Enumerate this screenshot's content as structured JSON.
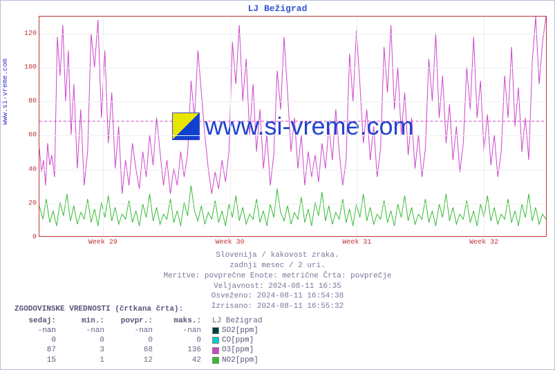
{
  "chart": {
    "type": "line",
    "title": "LJ Bežigrad",
    "y_axis_label_link": "www.si-vreme.com",
    "background_color": "#ffffff",
    "border_color": "#bb3333",
    "grid_color": "#eeeeee",
    "ylim": [
      0,
      130
    ],
    "yticks": [
      0,
      20,
      40,
      60,
      80,
      100,
      120
    ],
    "xticks": [
      "Week 29",
      "Week 30",
      "Week 31",
      "Week 32"
    ],
    "tick_color": "#bb3333",
    "tick_fontsize": 10,
    "title_color": "#3355cc",
    "title_fontsize": 13,
    "reference_line": {
      "y": 68,
      "color": "#cc44cc",
      "dash": true
    },
    "series": [
      {
        "name": "O3",
        "color": "#cc44cc",
        "line_width": 1,
        "points": [
          [
            0,
            52
          ],
          [
            3,
            38
          ],
          [
            6,
            45
          ],
          [
            9,
            30
          ],
          [
            12,
            55
          ],
          [
            15,
            42
          ],
          [
            18,
            48
          ],
          [
            22,
            35
          ],
          [
            26,
            118
          ],
          [
            30,
            95
          ],
          [
            34,
            125
          ],
          [
            38,
            80
          ],
          [
            42,
            110
          ],
          [
            46,
            60
          ],
          [
            50,
            90
          ],
          [
            55,
            40
          ],
          [
            60,
            75
          ],
          [
            65,
            30
          ],
          [
            70,
            50
          ],
          [
            75,
            120
          ],
          [
            80,
            100
          ],
          [
            85,
            128
          ],
          [
            90,
            70
          ],
          [
            95,
            110
          ],
          [
            100,
            55
          ],
          [
            105,
            85
          ],
          [
            110,
            40
          ],
          [
            115,
            65
          ],
          [
            120,
            25
          ],
          [
            125,
            45
          ],
          [
            130,
            30
          ],
          [
            135,
            55
          ],
          [
            140,
            40
          ],
          [
            145,
            28
          ],
          [
            150,
            50
          ],
          [
            155,
            35
          ],
          [
            160,
            60
          ],
          [
            165,
            42
          ],
          [
            170,
            70
          ],
          [
            175,
            50
          ],
          [
            180,
            30
          ],
          [
            185,
            45
          ],
          [
            190,
            25
          ],
          [
            195,
            40
          ],
          [
            200,
            30
          ],
          [
            205,
            50
          ],
          [
            210,
            35
          ],
          [
            215,
            48
          ],
          [
            220,
            92
          ],
          [
            225,
            70
          ],
          [
            230,
            110
          ],
          [
            235,
            85
          ],
          [
            240,
            60
          ],
          [
            245,
            40
          ],
          [
            250,
            25
          ],
          [
            255,
            38
          ],
          [
            260,
            28
          ],
          [
            265,
            45
          ],
          [
            270,
            32
          ],
          [
            275,
            50
          ],
          [
            280,
            115
          ],
          [
            285,
            90
          ],
          [
            290,
            125
          ],
          [
            295,
            80
          ],
          [
            300,
            105
          ],
          [
            305,
            60
          ],
          [
            310,
            90
          ],
          [
            315,
            50
          ],
          [
            320,
            75
          ],
          [
            325,
            40
          ],
          [
            330,
            60
          ],
          [
            335,
            30
          ],
          [
            340,
            48
          ],
          [
            345,
            98
          ],
          [
            350,
            75
          ],
          [
            355,
            118
          ],
          [
            360,
            85
          ],
          [
            365,
            50
          ],
          [
            370,
            70
          ],
          [
            375,
            40
          ],
          [
            380,
            60
          ],
          [
            385,
            30
          ],
          [
            390,
            50
          ],
          [
            395,
            35
          ],
          [
            400,
            48
          ],
          [
            405,
            32
          ],
          [
            410,
            55
          ],
          [
            415,
            40
          ],
          [
            420,
            65
          ],
          [
            425,
            45
          ],
          [
            430,
            75
          ],
          [
            435,
            50
          ],
          [
            440,
            30
          ],
          [
            445,
            45
          ],
          [
            450,
            108
          ],
          [
            455,
            80
          ],
          [
            460,
            122
          ],
          [
            465,
            90
          ],
          [
            470,
            55
          ],
          [
            475,
            75
          ],
          [
            480,
            45
          ],
          [
            485,
            65
          ],
          [
            490,
            35
          ],
          [
            495,
            52
          ],
          [
            500,
            112
          ],
          [
            505,
            85
          ],
          [
            510,
            125
          ],
          [
            515,
            75
          ],
          [
            520,
            100
          ],
          [
            525,
            60
          ],
          [
            530,
            85
          ],
          [
            535,
            48
          ],
          [
            540,
            70
          ],
          [
            545,
            40
          ],
          [
            550,
            60
          ],
          [
            555,
            35
          ],
          [
            560,
            52
          ],
          [
            565,
            105
          ],
          [
            570,
            80
          ],
          [
            575,
            120
          ],
          [
            580,
            70
          ],
          [
            585,
            95
          ],
          [
            590,
            55
          ],
          [
            595,
            78
          ],
          [
            600,
            45
          ],
          [
            605,
            65
          ],
          [
            610,
            38
          ],
          [
            615,
            55
          ],
          [
            620,
            100
          ],
          [
            625,
            75
          ],
          [
            630,
            118
          ],
          [
            635,
            70
          ],
          [
            640,
            92
          ],
          [
            645,
            50
          ],
          [
            650,
            72
          ],
          [
            655,
            42
          ],
          [
            660,
            60
          ],
          [
            665,
            35
          ],
          [
            670,
            50
          ],
          [
            675,
            95
          ],
          [
            680,
            70
          ],
          [
            685,
            112
          ],
          [
            690,
            65
          ],
          [
            695,
            88
          ],
          [
            700,
            50
          ],
          [
            705,
            70
          ],
          [
            710,
            45
          ],
          [
            715,
            103
          ],
          [
            720,
            130
          ],
          [
            725,
            90
          ],
          [
            730,
            115
          ],
          [
            735,
            130
          ]
        ]
      },
      {
        "name": "NO2",
        "color": "#33bb33",
        "line_width": 1,
        "points": [
          [
            0,
            18
          ],
          [
            5,
            10
          ],
          [
            10,
            22
          ],
          [
            15,
            8
          ],
          [
            20,
            15
          ],
          [
            25,
            6
          ],
          [
            30,
            20
          ],
          [
            35,
            12
          ],
          [
            40,
            25
          ],
          [
            45,
            9
          ],
          [
            50,
            18
          ],
          [
            55,
            7
          ],
          [
            60,
            14
          ],
          [
            65,
            10
          ],
          [
            70,
            22
          ],
          [
            75,
            8
          ],
          [
            80,
            16
          ],
          [
            85,
            6
          ],
          [
            90,
            20
          ],
          [
            95,
            11
          ],
          [
            100,
            24
          ],
          [
            105,
            9
          ],
          [
            110,
            17
          ],
          [
            115,
            7
          ],
          [
            120,
            13
          ],
          [
            125,
            10
          ],
          [
            130,
            21
          ],
          [
            135,
            8
          ],
          [
            140,
            15
          ],
          [
            145,
            6
          ],
          [
            150,
            19
          ],
          [
            155,
            11
          ],
          [
            160,
            25
          ],
          [
            165,
            9
          ],
          [
            170,
            17
          ],
          [
            175,
            7
          ],
          [
            180,
            13
          ],
          [
            185,
            10
          ],
          [
            190,
            22
          ],
          [
            195,
            8
          ],
          [
            200,
            15
          ],
          [
            205,
            6
          ],
          [
            210,
            20
          ],
          [
            215,
            12
          ],
          [
            220,
            30
          ],
          [
            225,
            15
          ],
          [
            230,
            9
          ],
          [
            235,
            18
          ],
          [
            240,
            7
          ],
          [
            245,
            14
          ],
          [
            250,
            10
          ],
          [
            255,
            21
          ],
          [
            260,
            8
          ],
          [
            265,
            15
          ],
          [
            270,
            6
          ],
          [
            275,
            19
          ],
          [
            280,
            11
          ],
          [
            285,
            24
          ],
          [
            290,
            9
          ],
          [
            295,
            17
          ],
          [
            300,
            7
          ],
          [
            305,
            13
          ],
          [
            310,
            10
          ],
          [
            315,
            22
          ],
          [
            320,
            8
          ],
          [
            325,
            15
          ],
          [
            330,
            6
          ],
          [
            335,
            19
          ],
          [
            340,
            11
          ],
          [
            345,
            28
          ],
          [
            350,
            14
          ],
          [
            355,
            9
          ],
          [
            360,
            18
          ],
          [
            365,
            7
          ],
          [
            370,
            14
          ],
          [
            375,
            10
          ],
          [
            380,
            23
          ],
          [
            385,
            8
          ],
          [
            390,
            16
          ],
          [
            395,
            6
          ],
          [
            400,
            20
          ],
          [
            405,
            12
          ],
          [
            410,
            26
          ],
          [
            415,
            9
          ],
          [
            420,
            18
          ],
          [
            425,
            7
          ],
          [
            430,
            14
          ],
          [
            435,
            10
          ],
          [
            440,
            22
          ],
          [
            445,
            8
          ],
          [
            450,
            16
          ],
          [
            455,
            6
          ],
          [
            460,
            19
          ],
          [
            465,
            11
          ],
          [
            470,
            25
          ],
          [
            475,
            9
          ],
          [
            480,
            17
          ],
          [
            485,
            7
          ],
          [
            490,
            13
          ],
          [
            495,
            10
          ],
          [
            500,
            21
          ],
          [
            505,
            8
          ],
          [
            510,
            15
          ],
          [
            515,
            6
          ],
          [
            520,
            19
          ],
          [
            525,
            11
          ],
          [
            530,
            24
          ],
          [
            535,
            9
          ],
          [
            540,
            17
          ],
          [
            545,
            7
          ],
          [
            550,
            13
          ],
          [
            555,
            10
          ],
          [
            560,
            22
          ],
          [
            565,
            8
          ],
          [
            570,
            15
          ],
          [
            575,
            6
          ],
          [
            580,
            19
          ],
          [
            585,
            11
          ],
          [
            590,
            25
          ],
          [
            595,
            9
          ],
          [
            600,
            17
          ],
          [
            605,
            7
          ],
          [
            610,
            13
          ],
          [
            615,
            10
          ],
          [
            620,
            21
          ],
          [
            625,
            8
          ],
          [
            630,
            15
          ],
          [
            635,
            6
          ],
          [
            640,
            19
          ],
          [
            645,
            11
          ],
          [
            650,
            24
          ],
          [
            655,
            9
          ],
          [
            660,
            17
          ],
          [
            665,
            7
          ],
          [
            670,
            13
          ],
          [
            675,
            10
          ],
          [
            680,
            22
          ],
          [
            685,
            8
          ],
          [
            690,
            15
          ],
          [
            695,
            6
          ],
          [
            700,
            19
          ],
          [
            705,
            11
          ],
          [
            710,
            25
          ],
          [
            715,
            9
          ],
          [
            720,
            17
          ],
          [
            725,
            7
          ],
          [
            730,
            13
          ],
          [
            735,
            10
          ]
        ]
      }
    ]
  },
  "watermark": {
    "text": "www.si-vreme.com",
    "text_color": "#2244cc",
    "text_fontsize": 36,
    "logo_colors": [
      "#e6e600",
      "#1040d0"
    ]
  },
  "caption": {
    "line1": "Slovenija / kakovost zraka.",
    "line2": "zadnji mesec / 2 uri.",
    "line3": "Meritve: povprečne  Enote: metrične  Črta: povprečje",
    "line4": "Veljavnost: 2024-08-11 16:35",
    "line5": "Osveženo: 2024-08-11 16:54:38",
    "line6": "Izrisano: 2024-08-11 16:55:32"
  },
  "history": {
    "title": "ZGODOVINSKE VREDNOSTI (črtkana črta):",
    "headers": {
      "c1": "sedaj:",
      "c2": "min.:",
      "c3": "povpr.:",
      "c4": "maks.:",
      "station": "LJ Bežigrad"
    },
    "rows": [
      {
        "c1": "-nan",
        "c2": "-nan",
        "c3": "-nan",
        "c4": "-nan",
        "label": "SO2[ppm]",
        "swatch_color": "#004040"
      },
      {
        "c1": "0",
        "c2": "0",
        "c3": "0",
        "c4": "0",
        "label": "CO[ppm]",
        "swatch_color": "#00cccc"
      },
      {
        "c1": "87",
        "c2": "3",
        "c3": "68",
        "c4": "136",
        "label": "O3[ppm]",
        "swatch_color": "#cc44cc"
      },
      {
        "c1": "15",
        "c2": "1",
        "c3": "12",
        "c4": "42",
        "label": "NO2[ppm]",
        "swatch_color": "#33bb33"
      }
    ]
  }
}
